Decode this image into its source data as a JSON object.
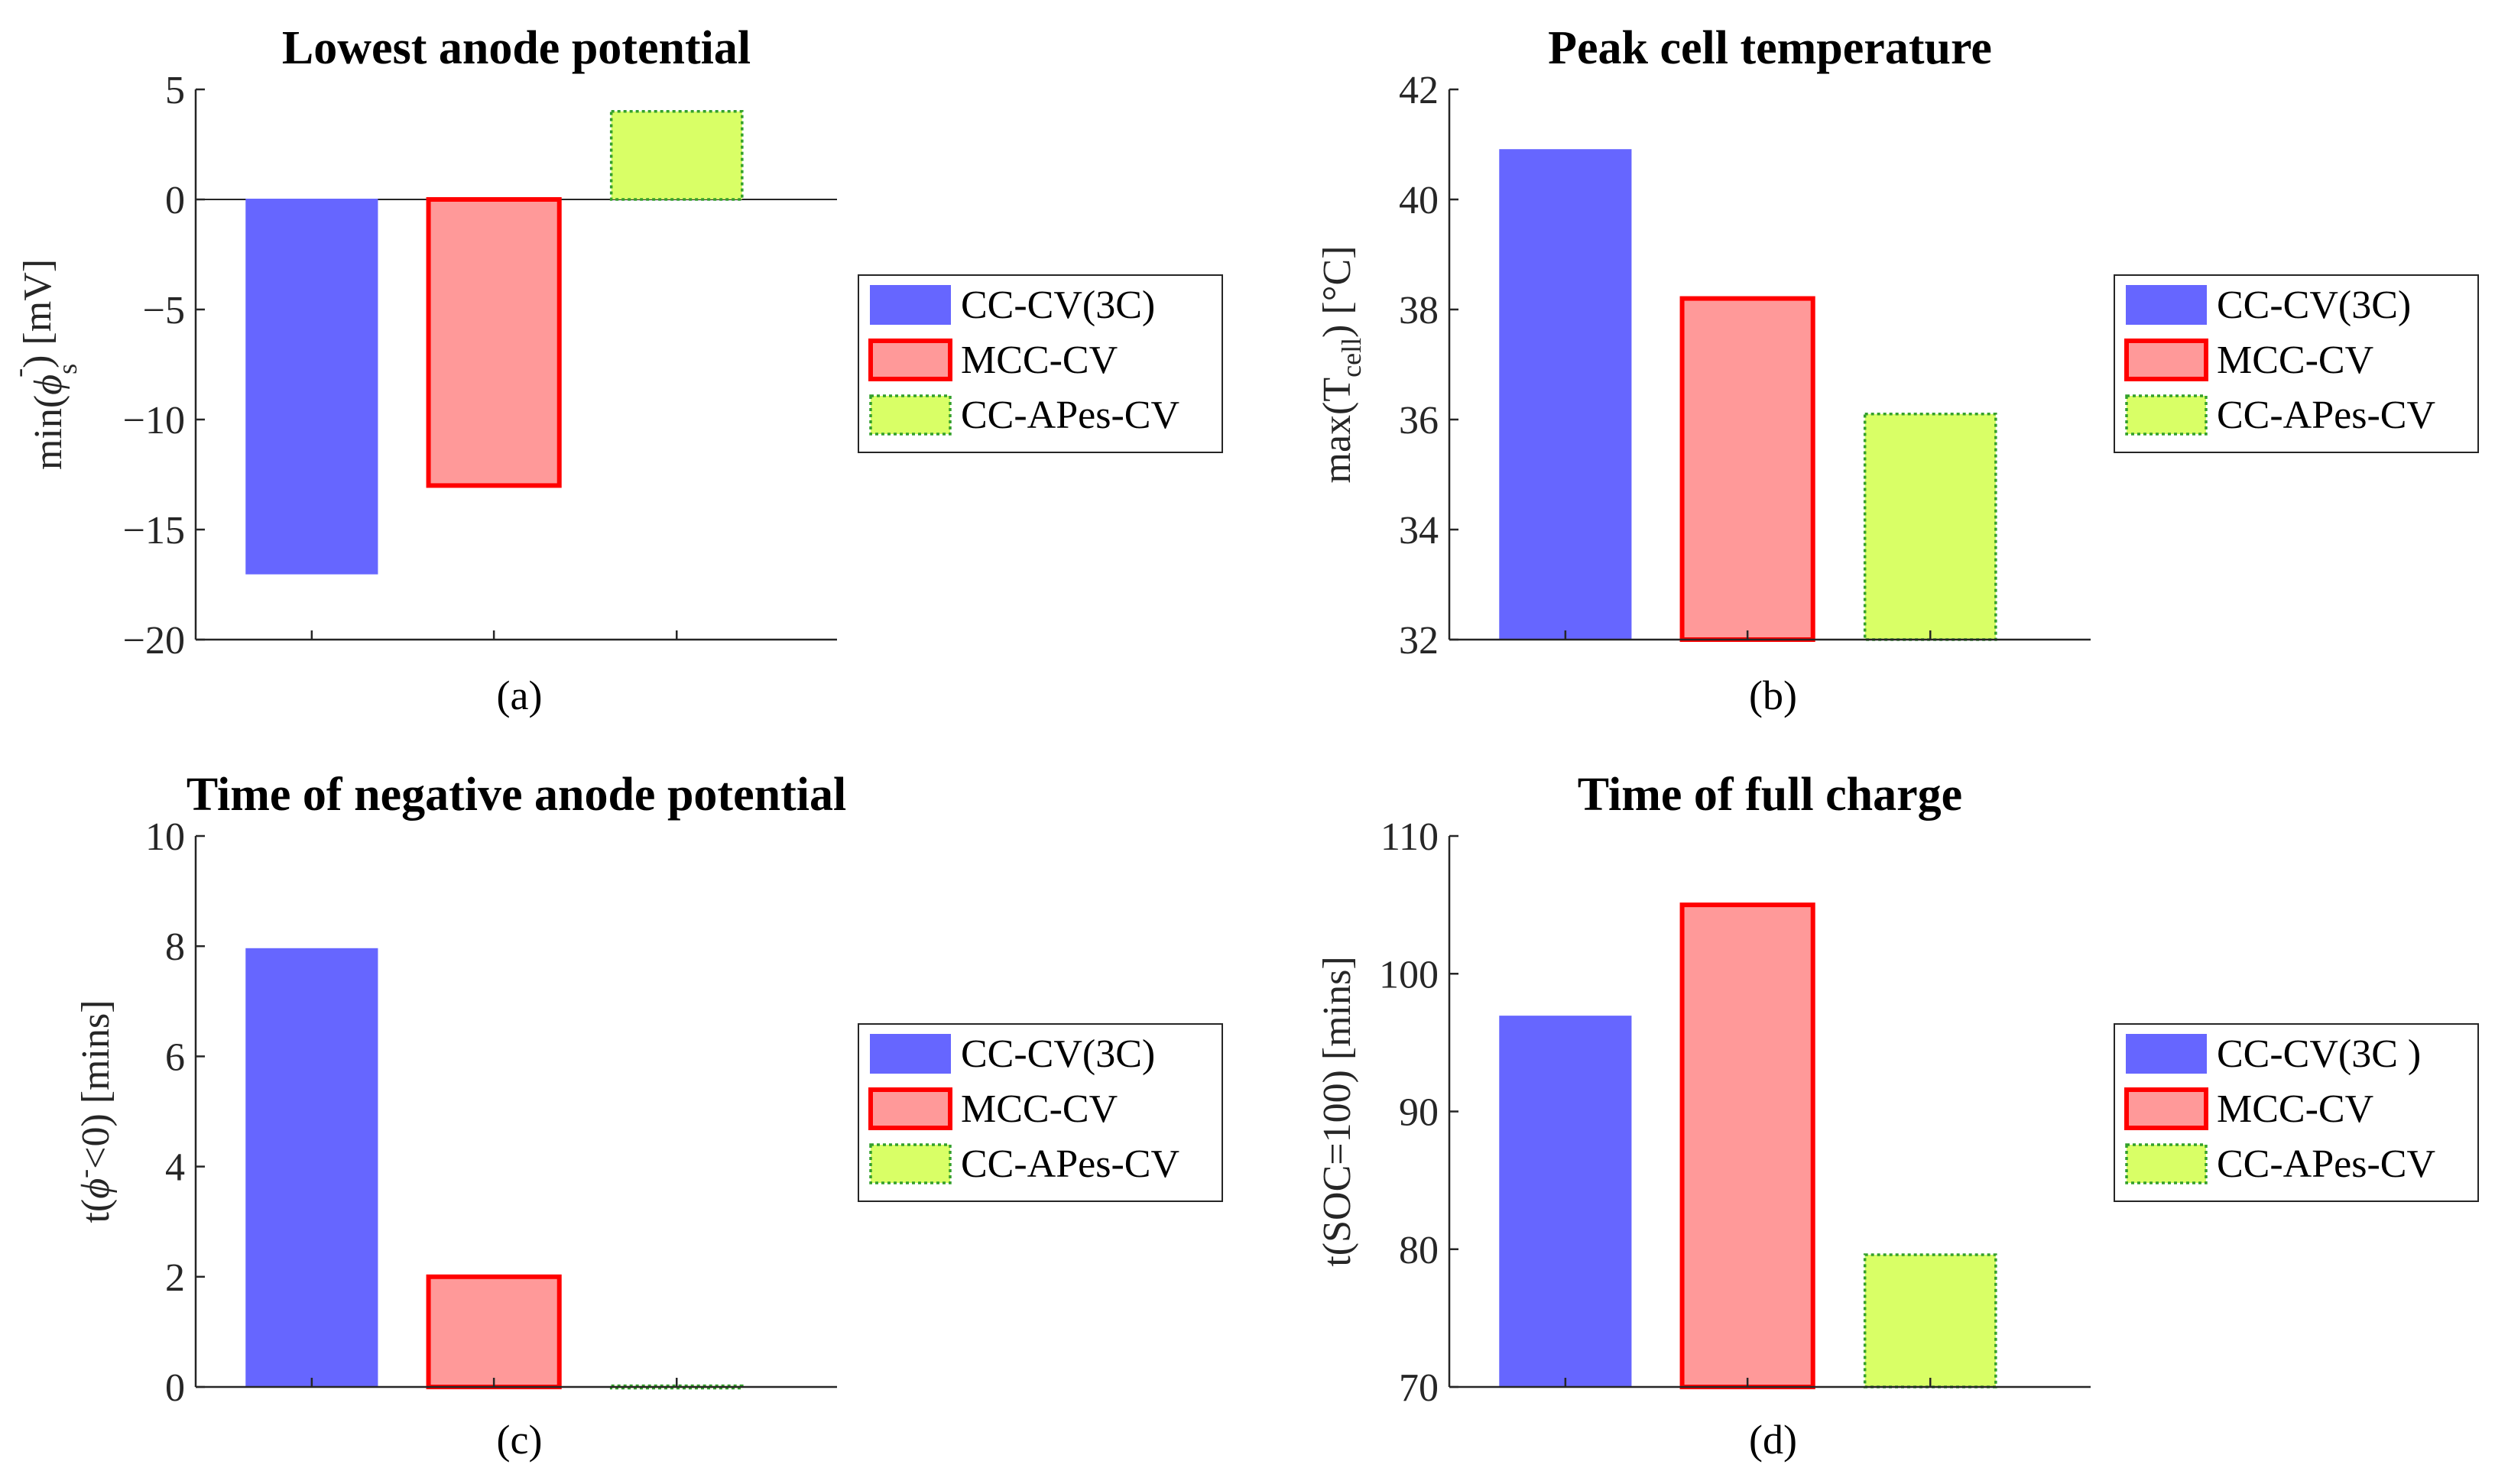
{
  "chart_data": [
    {
      "type": "bar",
      "panel": "a",
      "title": "Lowest anode potential",
      "subcaption": "(a)",
      "ylabel_parts": [
        "min(",
        "ϕ",
        "s",
        "-",
        ") [mV]"
      ],
      "ylim": [
        -20,
        5
      ],
      "yticks": [
        5,
        0,
        -5,
        -10,
        -15,
        -20
      ],
      "ytick_labels": [
        "5",
        "0",
        "−5",
        "−10",
        "−15",
        "−20"
      ],
      "categories": [
        "CC-CV(3C)",
        "MCC-CV",
        "CC-APes-CV"
      ],
      "values": [
        -17,
        -13,
        4
      ],
      "legend": [
        "CC-CV(3C)",
        "MCC-CV",
        "CC-APes-CV"
      ],
      "legend_position": "right"
    },
    {
      "type": "bar",
      "panel": "b",
      "title": "Peak cell temperature",
      "subcaption": "(b)",
      "ylabel_parts": [
        "max(T",
        "cell",
        ") [°C]"
      ],
      "ylim": [
        32,
        42
      ],
      "yticks": [
        42,
        40,
        38,
        36,
        34,
        32
      ],
      "ytick_labels": [
        "42",
        "40",
        "38",
        "36",
        "34",
        "32"
      ],
      "categories": [
        "CC-CV(3C)",
        "MCC-CV",
        "CC-APes-CV"
      ],
      "values": [
        40.9,
        38.2,
        36.1
      ],
      "legend": [
        "CC-CV(3C)",
        "MCC-CV",
        "CC-APes-CV"
      ],
      "legend_position": "right"
    },
    {
      "type": "bar",
      "panel": "c",
      "title": "Time of negative anode potential",
      "subcaption": "(c)",
      "ylabel_parts": [
        "t(",
        "ϕ",
        "-",
        "<0) [mins]"
      ],
      "ylim": [
        0,
        10
      ],
      "yticks": [
        10,
        8,
        6,
        4,
        2,
        0
      ],
      "ytick_labels": [
        "10",
        "8",
        "6",
        "4",
        "2",
        "0"
      ],
      "categories": [
        "CC-CV(3C)",
        "MCC-CV",
        "CC-APes-CV"
      ],
      "values": [
        7.95,
        2.0,
        0.02
      ],
      "legend": [
        "CC-CV(3C)",
        "MCC-CV",
        "CC-APes-CV"
      ],
      "legend_position": "right"
    },
    {
      "type": "bar",
      "panel": "d",
      "title": "Time of full charge",
      "subcaption": "(d)",
      "ylabel_parts": [
        "t(SOC=100) [mins]"
      ],
      "ylim": [
        70,
        110
      ],
      "yticks": [
        110,
        100,
        90,
        80,
        70
      ],
      "ytick_labels": [
        "110",
        "100",
        "90",
        "80",
        "70"
      ],
      "categories": [
        "CC-CV(3C )",
        "MCC-CV",
        "CC-APes-CV"
      ],
      "values": [
        96.9,
        105,
        79.6
      ],
      "legend": [
        "CC-CV(3C )",
        "MCC-CV",
        "CC-APes-CV"
      ],
      "legend_position": "right"
    }
  ],
  "series_styles": [
    {
      "fill": "#6666ff",
      "stroke": "#6666ff",
      "dash": ""
    },
    {
      "fill": "#ff9999",
      "stroke": "#ff0000",
      "dash": ""
    },
    {
      "fill": "#d9ff66",
      "stroke": "#33a02c",
      "dash": "4,4"
    }
  ]
}
